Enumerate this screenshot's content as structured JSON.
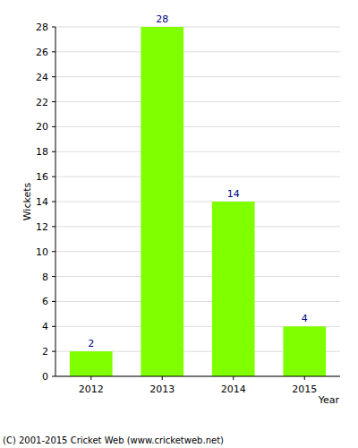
{
  "chart_data": {
    "type": "bar",
    "xlabel": "Year",
    "ylabel": "Wickets",
    "categories": [
      "2012",
      "2013",
      "2014",
      "2015"
    ],
    "values": [
      2,
      28,
      14,
      4
    ],
    "color": "#80ff00",
    "ylim": [
      0,
      28
    ],
    "yticks": [
      0,
      2,
      4,
      6,
      8,
      10,
      12,
      14,
      16,
      18,
      20,
      22,
      24,
      26,
      28
    ],
    "grid": true,
    "data_labels": true,
    "annotations": [
      "(C) 2001-2015 Cricket Web (www.cricketweb.net)"
    ]
  }
}
